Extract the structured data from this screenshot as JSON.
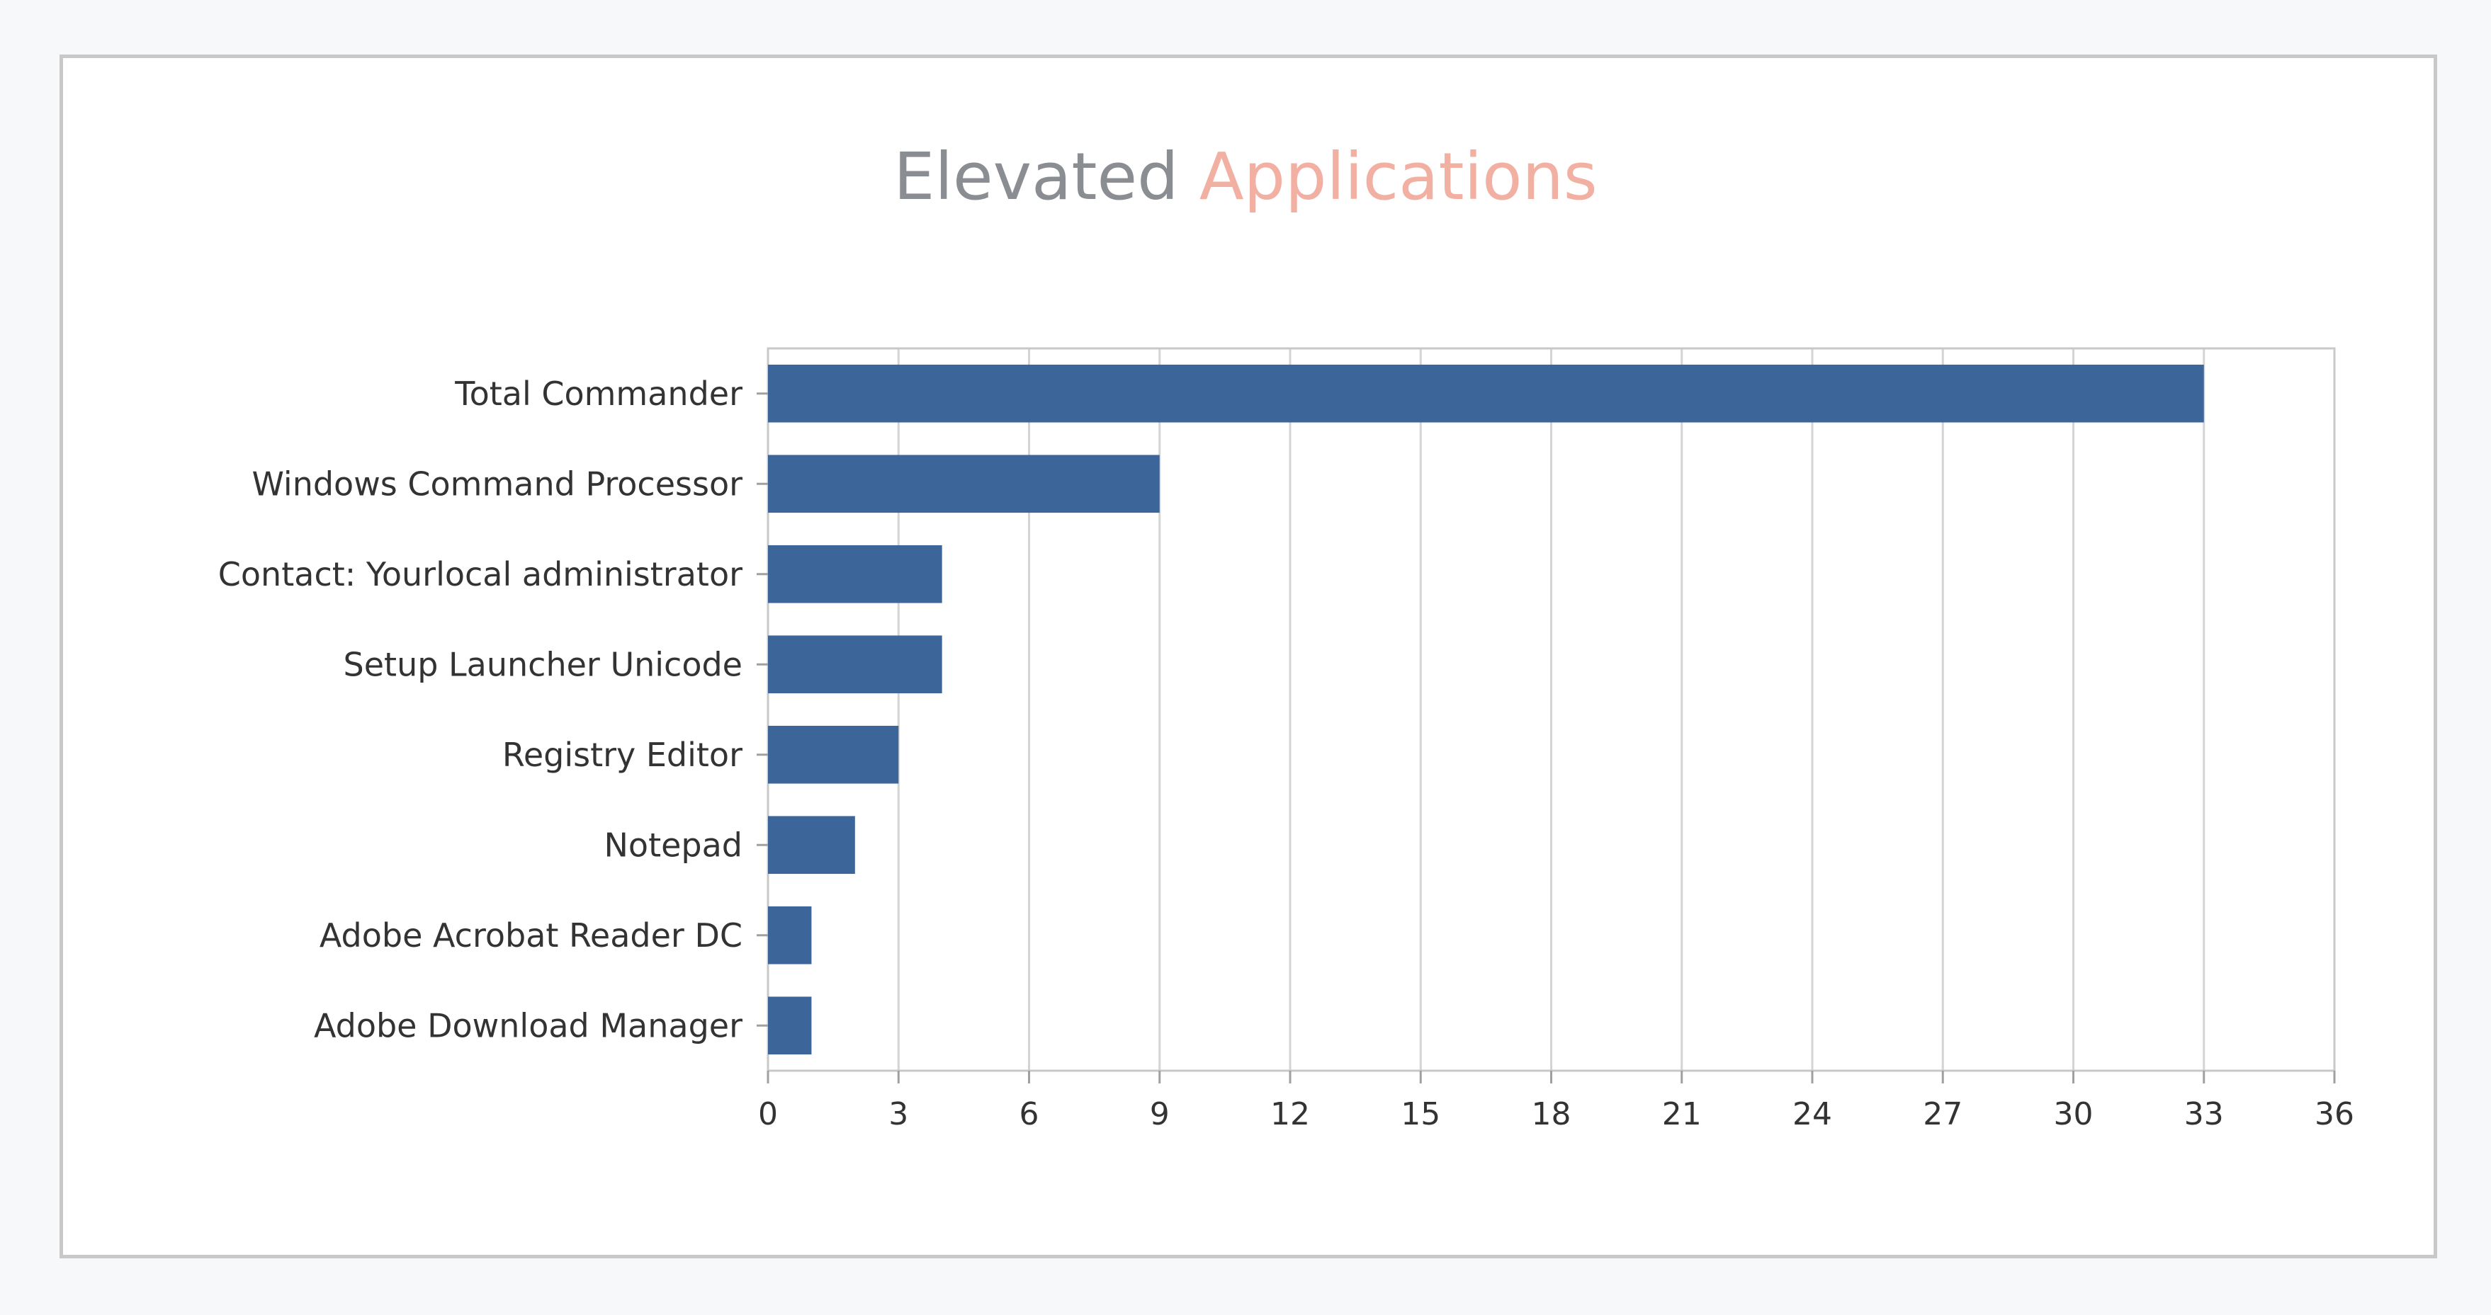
{
  "chart_data": {
    "type": "bar",
    "orientation": "horizontal",
    "title_parts": [
      {
        "text": "Elevated",
        "color": "#8a8d91"
      },
      {
        "text": "Applications",
        "color": "#f2b0a3"
      }
    ],
    "categories": [
      "Total Commander",
      "Windows Command Processor",
      "Contact:  Yourlocal administrator",
      "Setup Launcher Unicode",
      "Registry Editor",
      "Notepad",
      "Adobe Acrobat Reader DC",
      "Adobe Download Manager"
    ],
    "values": [
      33,
      9,
      4,
      4,
      3,
      2,
      1,
      1
    ],
    "xlim": [
      0,
      36
    ],
    "xticks": [
      0,
      3,
      6,
      9,
      12,
      15,
      18,
      21,
      24,
      27,
      30,
      33,
      36
    ],
    "grid": true,
    "bar_color": "#3c6699"
  }
}
